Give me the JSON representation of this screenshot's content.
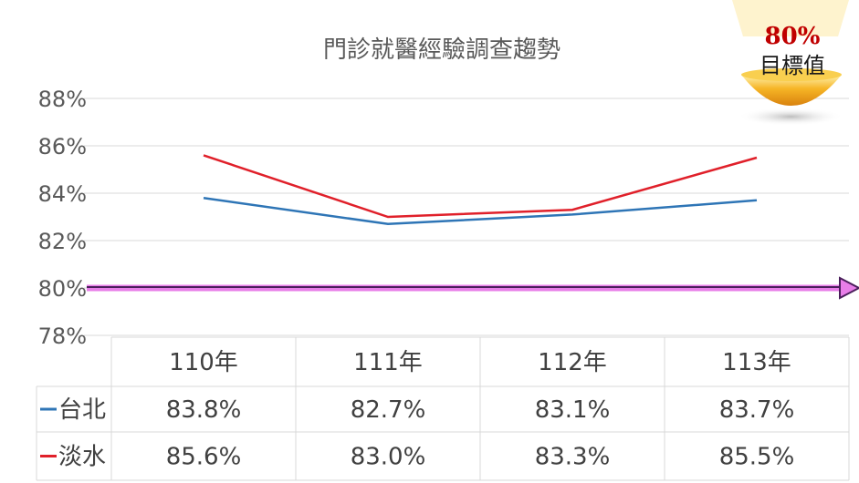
{
  "chart_data": {
    "type": "line",
    "title": "門診就醫經驗調查趨勢",
    "categories": [
      "110年",
      "111年",
      "112年",
      "113年"
    ],
    "series": [
      {
        "name": "台北",
        "values": [
          83.8,
          82.7,
          83.1,
          83.7
        ],
        "labels": [
          "83.8%",
          "82.7%",
          "83.1%",
          "83.7%"
        ],
        "color": "#2e75b6"
      },
      {
        "name": "淡水",
        "values": [
          85.6,
          83.0,
          83.3,
          85.5
        ],
        "labels": [
          "85.6%",
          "83.0%",
          "83.3%",
          "85.5%"
        ],
        "color": "#e0202a"
      }
    ],
    "ylim": [
      78,
      88
    ],
    "yticks": [
      78,
      80,
      82,
      84,
      86,
      88
    ],
    "ytick_labels": [
      "78%",
      "80%",
      "82%",
      "84%",
      "86%",
      "88%"
    ],
    "target_value": 80,
    "target_line_color": "#e87ee8",
    "grid": true,
    "data_table": true
  },
  "badge": {
    "value": "80%",
    "label": "目標值",
    "color": "#f2a51a"
  }
}
